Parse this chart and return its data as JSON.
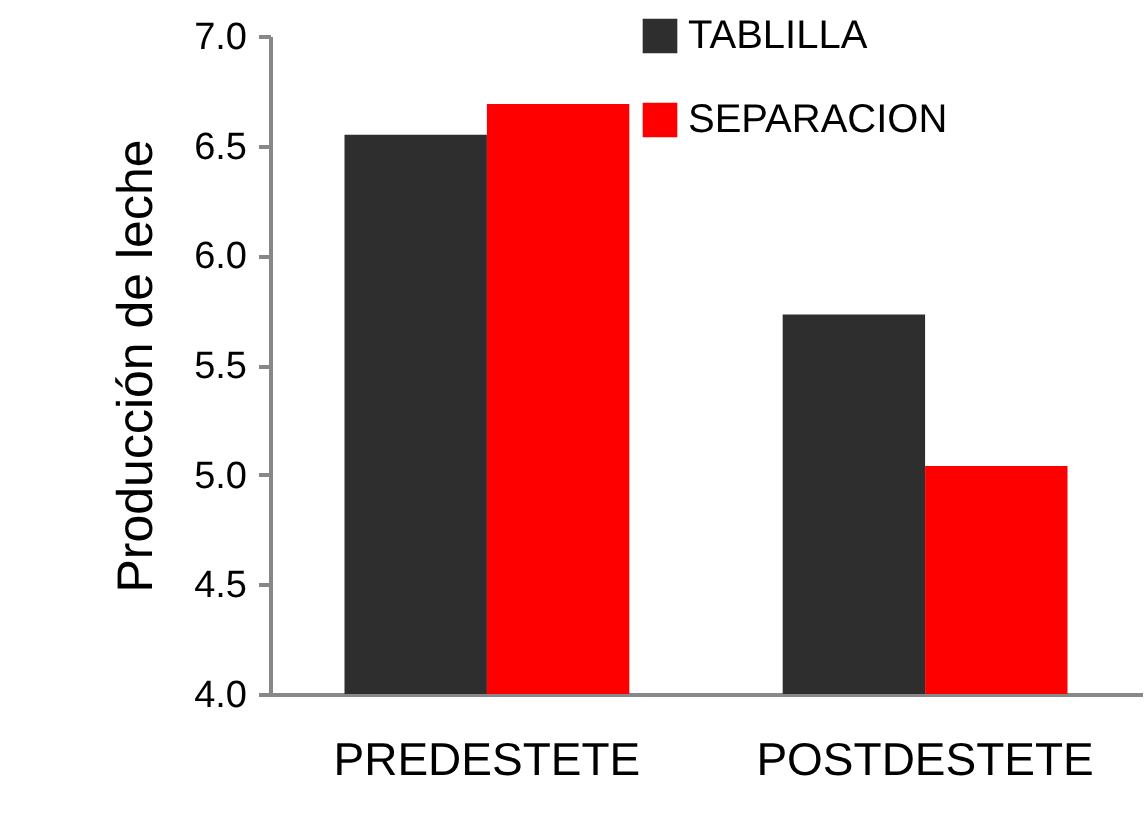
{
  "chart_data": {
    "type": "bar",
    "ylabel": "Producción de leche",
    "categories": [
      "PREDESTETE",
      "POSTDESTETE"
    ],
    "series": [
      {
        "name": "TABLILLA",
        "color": "#2e2e2e",
        "values": [
          6.55,
          5.73
        ]
      },
      {
        "name": "SEPARACION",
        "color": "#ff0000",
        "values": [
          6.69,
          5.04
        ]
      }
    ],
    "ylim": [
      4.0,
      7.0
    ],
    "yticks": [
      {
        "value": 4,
        "label": "4.0"
      },
      {
        "value": 4.5,
        "label": "4.5"
      },
      {
        "value": 5,
        "label": "5.0"
      },
      {
        "value": 5.5,
        "label": "5.5"
      },
      {
        "value": 6,
        "label": "6.0"
      },
      {
        "value": 6.5,
        "label": "6.5"
      },
      {
        "value": 7,
        "label": "7.0"
      }
    ],
    "grid": false,
    "legend": "top right"
  }
}
